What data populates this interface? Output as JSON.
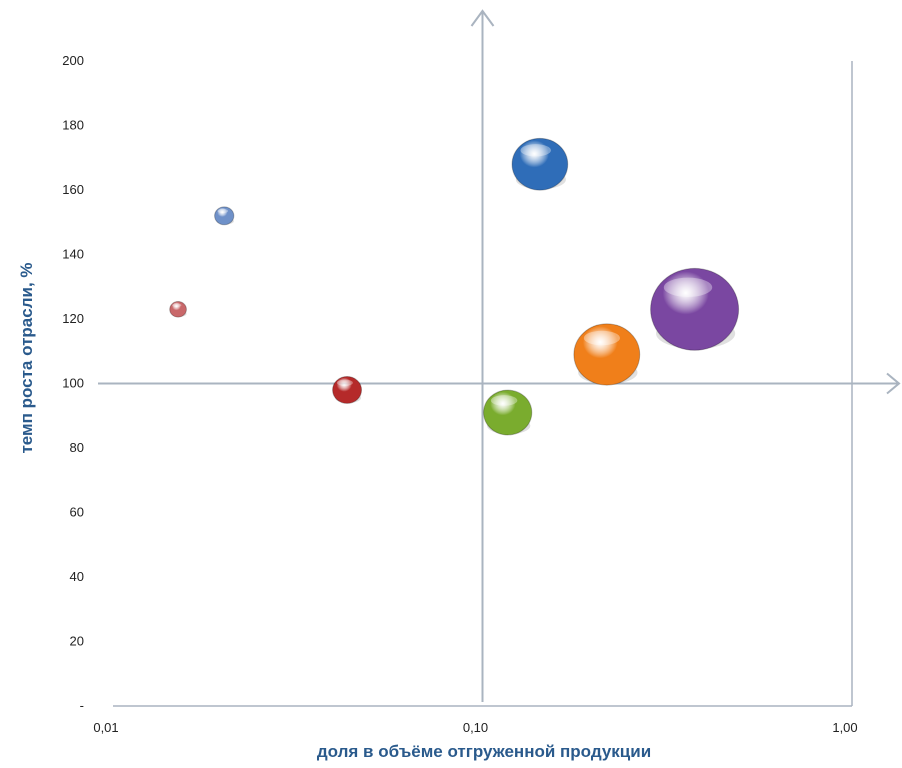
{
  "chart_data": {
    "type": "bubble",
    "xlabel": "доля  в объёме отгруженной продукции",
    "ylabel": "темп роста отрасли, %",
    "x_scale": "log",
    "xlim": [
      0.01,
      1.0
    ],
    "ylim": [
      0,
      200
    ],
    "x_ticks": [
      {
        "value": 0.01,
        "label": "0,01"
      },
      {
        "value": 0.1,
        "label": "0,10"
      },
      {
        "value": 1.0,
        "label": "1,00"
      }
    ],
    "y_ticks": [
      {
        "value": 0,
        "label": "-"
      },
      {
        "value": 20,
        "label": "20"
      },
      {
        "value": 40,
        "label": "40"
      },
      {
        "value": 60,
        "label": "60"
      },
      {
        "value": 80,
        "label": "80"
      },
      {
        "value": 100,
        "label": "100"
      },
      {
        "value": 120,
        "label": "120"
      },
      {
        "value": 140,
        "label": "140"
      },
      {
        "value": 160,
        "label": "160"
      },
      {
        "value": 180,
        "label": "180"
      },
      {
        "value": 200,
        "label": "200"
      }
    ],
    "quadrant_lines": {
      "x": 0.1,
      "y": 100
    },
    "series": [
      {
        "x": 0.015,
        "y": 123,
        "size": 0.9,
        "color": "#c9686a"
      },
      {
        "x": 0.02,
        "y": 152,
        "size": 1.2,
        "color": "#6f91c9"
      },
      {
        "x": 0.043,
        "y": 98,
        "size": 2.7,
        "color": "#b52a2a"
      },
      {
        "x": 0.117,
        "y": 91,
        "size": 7.5,
        "color": "#7aac2e"
      },
      {
        "x": 0.143,
        "y": 168,
        "size": 10,
        "color": "#2f6db8"
      },
      {
        "x": 0.217,
        "y": 109,
        "size": 14,
        "color": "#f07f1a"
      },
      {
        "x": 0.375,
        "y": 123,
        "size": 25,
        "color": "#7a47a1"
      }
    ]
  }
}
